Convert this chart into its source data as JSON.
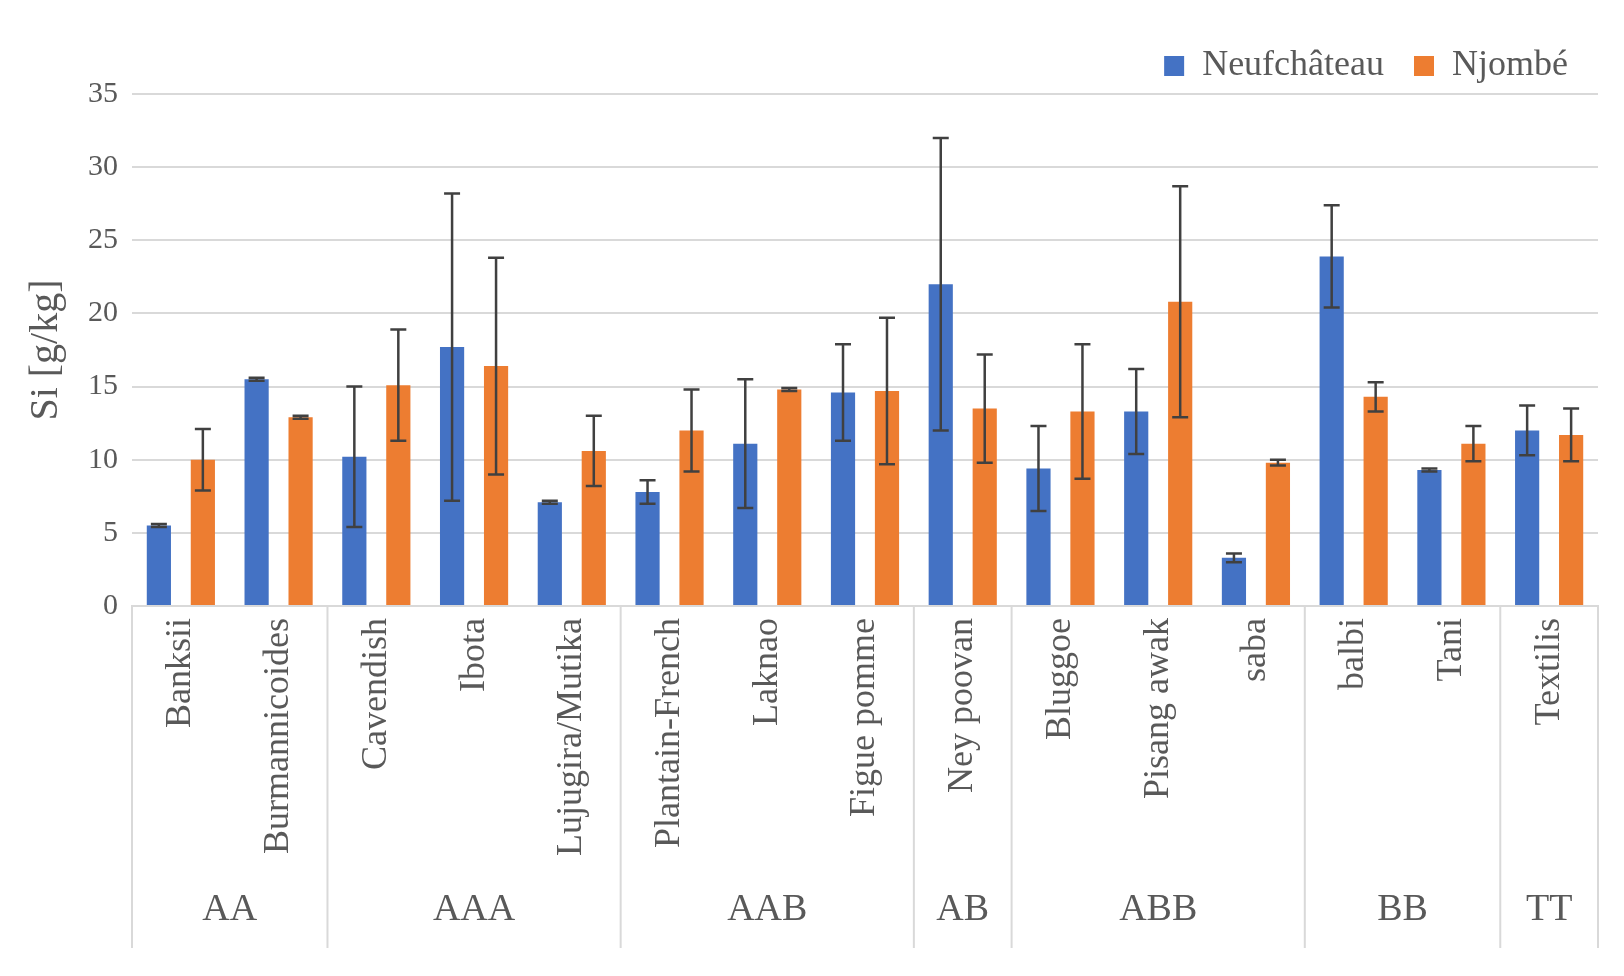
{
  "chart_data": {
    "type": "bar",
    "ylabel": "Si [g/kg]",
    "categories": [
      "Banksii",
      "Burmannicoides",
      "Cavendish",
      "Ibota",
      "Lujugira/Mutika",
      "Plantain-French",
      "Laknao",
      "Figue pomme",
      "Ney poovan",
      "Bluggoe",
      "Pisang awak",
      "saba",
      "balbi",
      "Tani",
      "Textilis"
    ],
    "series": [
      {
        "name": "Neufchâteau",
        "color": "#4472c4",
        "values": [
          5.5,
          15.5,
          10.2,
          17.7,
          7.1,
          7.8,
          11.1,
          14.6,
          22.0,
          9.4,
          13.3,
          3.3,
          23.9,
          9.3,
          12.0
        ],
        "errors": [
          0.1,
          0.1,
          4.8,
          10.5,
          0.1,
          0.8,
          4.4,
          3.3,
          10.0,
          2.9,
          2.9,
          0.3,
          3.5,
          0.1,
          1.7
        ]
      },
      {
        "name": "Njombé",
        "color": "#ed7d31",
        "values": [
          10.0,
          12.9,
          15.1,
          16.4,
          10.6,
          12.0,
          14.8,
          14.7,
          13.5,
          13.3,
          20.8,
          9.8,
          14.3,
          11.1,
          11.7
        ],
        "errors": [
          2.1,
          0.1,
          3.8,
          7.4,
          2.4,
          2.8,
          0.1,
          5.0,
          3.7,
          4.6,
          7.9,
          0.2,
          1.0,
          1.2,
          1.8
        ]
      }
    ],
    "annotations": [
      "AA",
      "AAA",
      "AAB",
      "AB",
      "ABB",
      "BB",
      "TT"
    ],
    "ylim": [
      0,
      35
    ],
    "yticks": [
      0,
      5,
      10,
      15,
      20,
      25,
      30,
      35
    ],
    "grid": "y",
    "legend": "top right"
  }
}
